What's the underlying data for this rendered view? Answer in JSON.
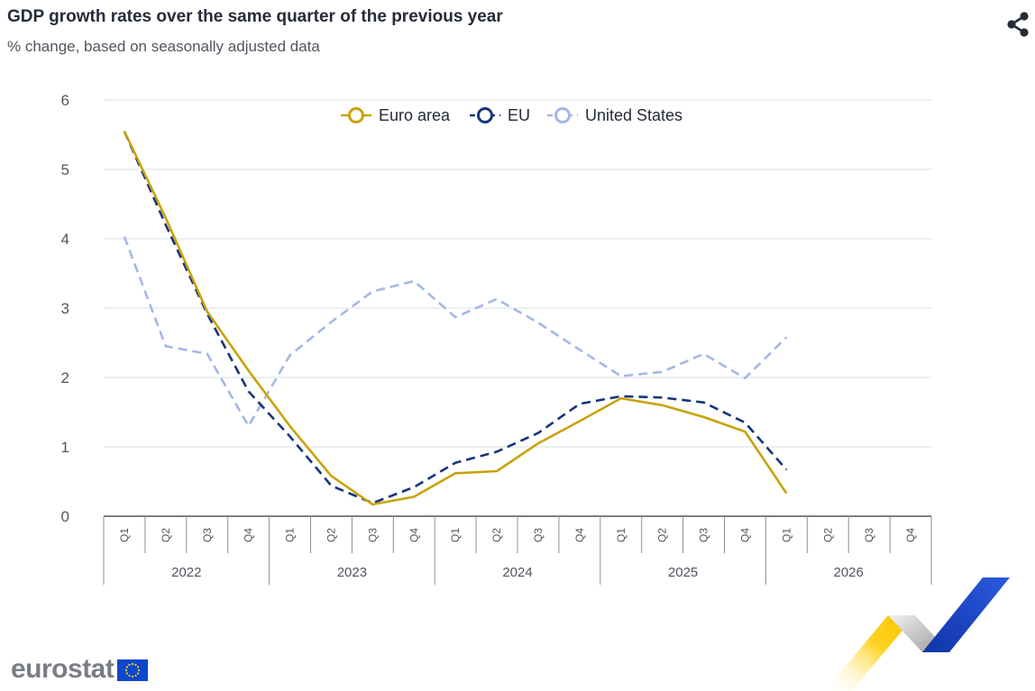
{
  "header": {
    "title": "GDP growth rates over the same quarter of the previous year",
    "subtitle": "% change, based on seasonally adjusted data",
    "share_icon": "share-icon"
  },
  "logo": {
    "text": "eurostat",
    "flag_icon": "eu-flag-icon"
  },
  "colors": {
    "euro_area": "#c9a20c",
    "eu": "#17357a",
    "united_states": "#a4b7e6",
    "grid": "#e6e8ee",
    "axis": "#50555f"
  },
  "chart_data": {
    "type": "line",
    "legend_position": "top-center",
    "grid": true,
    "ylim": [
      0,
      6
    ],
    "yticks": [
      "0",
      "1",
      "2",
      "3",
      "4",
      "5",
      "6"
    ],
    "quarters": [
      "Q1",
      "Q2",
      "Q3",
      "Q4",
      "Q1",
      "Q2",
      "Q3",
      "Q4",
      "Q1",
      "Q2",
      "Q3",
      "Q4",
      "Q1",
      "Q2",
      "Q3",
      "Q4",
      "Q1",
      "Q2",
      "Q3",
      "Q4"
    ],
    "years": [
      "2022",
      "2023",
      "2024",
      "2025",
      "2026"
    ],
    "series": [
      {
        "name": "Euro area",
        "style": "solid",
        "values": [
          5.55,
          4.3,
          2.95,
          2.1,
          1.3,
          0.58,
          0.17,
          0.28,
          0.62,
          0.65,
          1.05,
          1.37,
          1.7,
          1.6,
          1.43,
          1.22,
          0.33,
          null,
          null,
          null
        ]
      },
      {
        "name": "EU",
        "style": "dashed",
        "values": [
          5.55,
          4.2,
          2.92,
          1.8,
          1.15,
          0.44,
          0.19,
          0.42,
          0.77,
          0.93,
          1.2,
          1.62,
          1.73,
          1.71,
          1.64,
          1.35,
          0.67,
          null,
          null,
          null
        ]
      },
      {
        "name": "United States",
        "style": "dashed",
        "values": [
          4.03,
          2.45,
          2.34,
          1.3,
          2.32,
          2.8,
          3.24,
          3.39,
          2.87,
          3.13,
          2.79,
          2.4,
          2.02,
          2.08,
          2.34,
          1.99,
          2.58,
          null,
          null,
          null
        ]
      }
    ]
  }
}
